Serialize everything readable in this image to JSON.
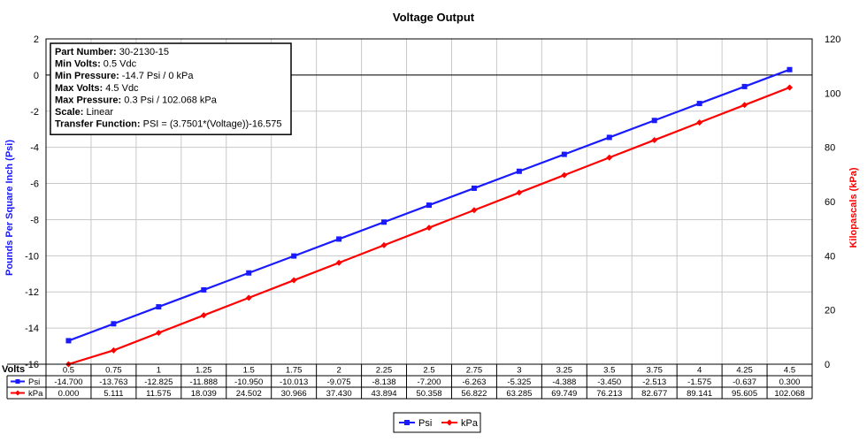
{
  "chart_data": {
    "type": "line",
    "title": "Voltage Output",
    "xlabel": "Volts",
    "ylabel_left": "Pounds Per Square Inch (Psi)",
    "ylabel_right": "Kilopascals (kPa)",
    "x": [
      "0.5",
      "0.75",
      "1",
      "1.25",
      "1.5",
      "1.75",
      "2",
      "2.25",
      "2.5",
      "2.75",
      "3",
      "3.25",
      "3.5",
      "3.75",
      "4",
      "4.25",
      "4.5"
    ],
    "ylim_left": [
      -16,
      2
    ],
    "yticks_left": [
      "2",
      "0",
      "-2",
      "-4",
      "-6",
      "-8",
      "-10",
      "-12",
      "-14",
      "-16"
    ],
    "ylim_right": [
      0,
      120
    ],
    "yticks_right": [
      "120",
      "100",
      "80",
      "60",
      "40",
      "20",
      "0"
    ],
    "grid": true,
    "legend_placement": "bottom-center",
    "series": [
      {
        "name": "Psi",
        "axis": "left",
        "color": "#1a1aff",
        "values": [
          -14.7,
          -13.763,
          -12.825,
          -11.888,
          -10.95,
          -10.013,
          -9.075,
          -8.138,
          -7.2,
          -6.263,
          -5.325,
          -4.388,
          -3.45,
          -2.513,
          -1.575,
          -0.637,
          0.3
        ],
        "labels": [
          "-14.700",
          "-13.763",
          "-12.825",
          "-11.888",
          "-10.950",
          "-10.013",
          "-9.075",
          "-8.138",
          "-7.200",
          "-6.263",
          "-5.325",
          "-4.388",
          "-3.450",
          "-2.513",
          "-1.575",
          "-0.637",
          "0.300"
        ]
      },
      {
        "name": "kPa",
        "axis": "right",
        "color": "#ff0000",
        "values": [
          0,
          5.111,
          11.575,
          18.039,
          24.502,
          30.966,
          37.43,
          43.894,
          50.358,
          56.822,
          63.285,
          69.749,
          76.213,
          82.677,
          89.141,
          95.605,
          102.068
        ],
        "labels": [
          "0.000",
          "5.111",
          "11.575",
          "18.039",
          "24.502",
          "30.966",
          "37.430",
          "43.894",
          "50.358",
          "56.822",
          "63.285",
          "69.749",
          "76.213",
          "82.677",
          "89.141",
          "95.605",
          "102.068"
        ]
      }
    ],
    "annotation_box": [
      {
        "label": "Part Number:",
        "value": " 30-2130-15"
      },
      {
        "label": "Min Volts:",
        "value": " 0.5 Vdc"
      },
      {
        "label": "Min Pressure:",
        "value": " -14.7 Psi / 0 kPa"
      },
      {
        "label": "Max Volts:",
        "value": " 4.5 Vdc"
      },
      {
        "label": "Max Pressure:",
        "value": " 0.3 Psi / 102.068 kPa"
      },
      {
        "label": "Scale:",
        "value": " Linear"
      },
      {
        "label": "Transfer Function:",
        "value": " PSI = (3.7501*(Voltage))-16.575"
      }
    ]
  }
}
